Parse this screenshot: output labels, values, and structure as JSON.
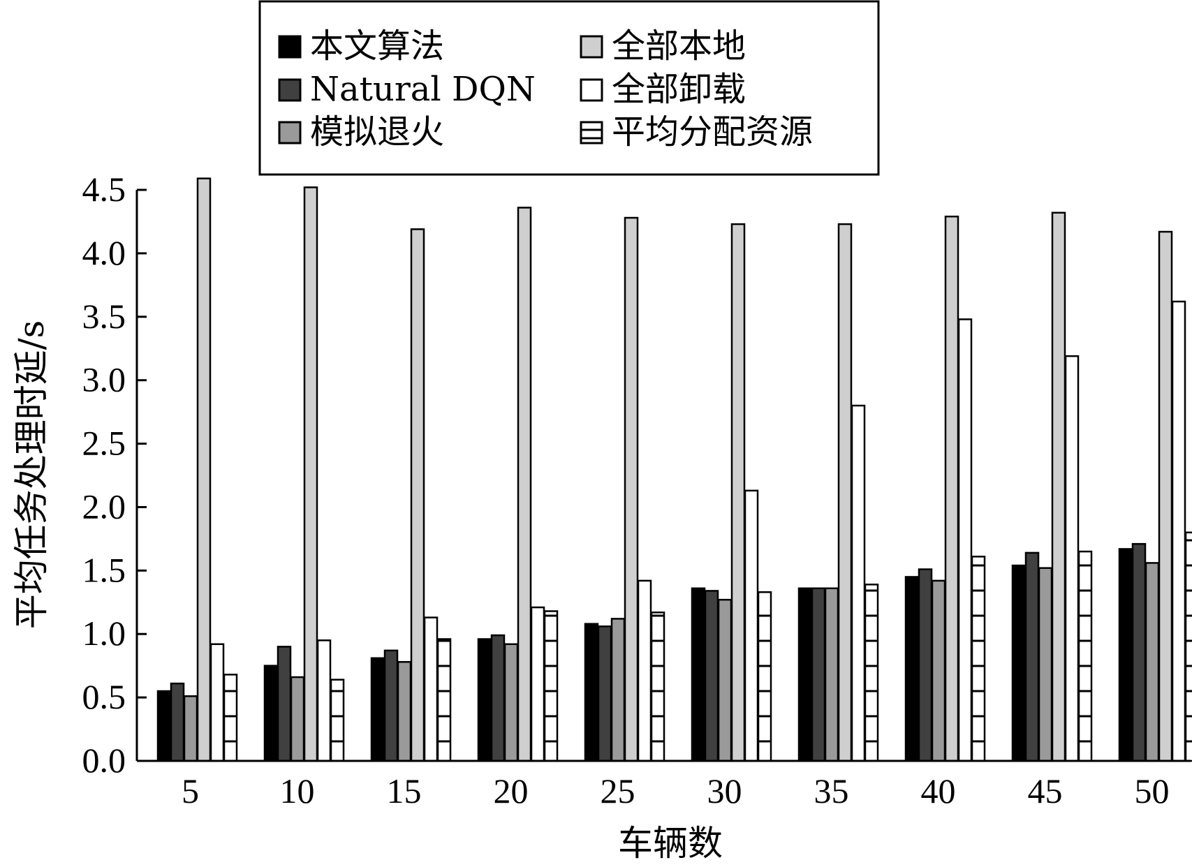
{
  "chart_data": {
    "type": "bar",
    "xlabel": "车辆数",
    "ylabel": "平均任务处理时延/s",
    "ylim": [
      0,
      4.5
    ],
    "yticks": [
      "0.0",
      "0.5",
      "1.0",
      "1.5",
      "2.0",
      "2.5",
      "3.0",
      "3.5",
      "4.0",
      "4.5"
    ],
    "categories": [
      "5",
      "10",
      "15",
      "20",
      "25",
      "30",
      "35",
      "40",
      "45",
      "50"
    ],
    "legend_position": "top-center",
    "grid": false,
    "series": [
      {
        "name": "本文算法",
        "fill": "#000000",
        "pattern": "solid",
        "values": [
          0.55,
          0.75,
          0.81,
          0.96,
          1.08,
          1.36,
          1.36,
          1.45,
          1.54,
          1.67
        ]
      },
      {
        "name": "Natural DQN",
        "fill": "#404040",
        "pattern": "solid",
        "values": [
          0.61,
          0.9,
          0.87,
          0.99,
          1.06,
          1.34,
          1.36,
          1.51,
          1.64,
          1.71
        ]
      },
      {
        "name": "模拟退火",
        "fill": "#9a9a9a",
        "pattern": "solid",
        "values": [
          0.51,
          0.66,
          0.78,
          0.92,
          1.12,
          1.27,
          1.36,
          1.42,
          1.52,
          1.56
        ]
      },
      {
        "name": "全部本地",
        "fill": "#cfcfcf",
        "pattern": "solid",
        "values": [
          4.59,
          4.52,
          4.19,
          4.36,
          4.28,
          4.23,
          4.23,
          4.29,
          4.32,
          4.17
        ]
      },
      {
        "name": "全部卸载",
        "fill": "#ffffff",
        "pattern": "solid",
        "values": [
          0.92,
          0.95,
          1.13,
          1.21,
          1.42,
          2.13,
          2.8,
          3.48,
          3.19,
          3.62
        ]
      },
      {
        "name": "平均分配资源",
        "fill": "#ffffff",
        "pattern": "horizontal-lines",
        "values": [
          0.68,
          0.64,
          0.96,
          1.18,
          1.17,
          1.33,
          1.39,
          1.61,
          1.65,
          1.8
        ]
      }
    ]
  }
}
